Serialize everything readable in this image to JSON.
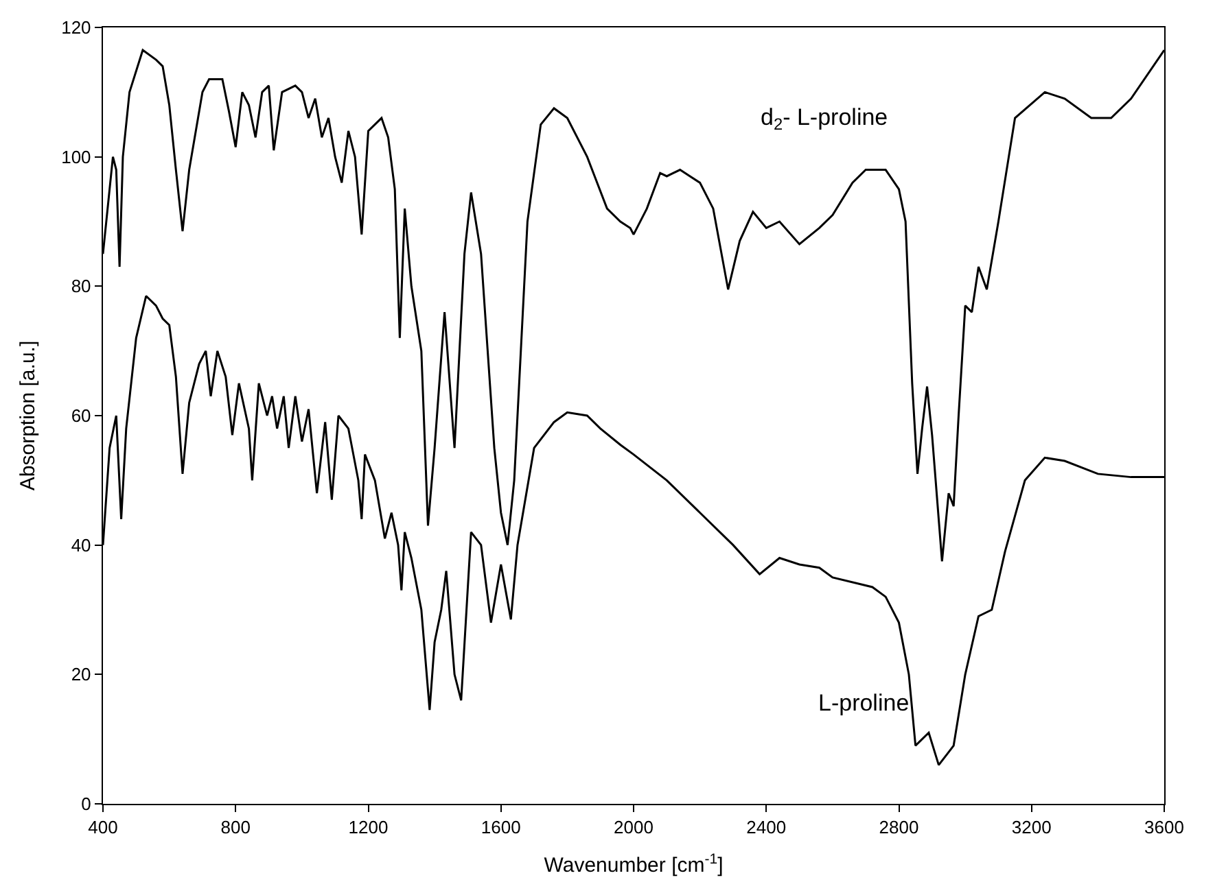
{
  "chart_data": {
    "type": "line",
    "xlabel": "Wavenumber [cm$^{-1}$]",
    "ylabel": "Absorption [a.u.]",
    "xlim": [
      400,
      3600
    ],
    "xticks": [
      400,
      800,
      1200,
      1600,
      2000,
      2400,
      2800,
      3200,
      3600
    ],
    "ylim": [
      0,
      120
    ],
    "yticks": [
      0,
      20,
      40,
      60,
      80,
      100,
      120
    ],
    "legend": false,
    "marker": "none",
    "line_style": "solid",
    "series": [
      {
        "name": "d$_{2}$- L-proline",
        "color": "#000000",
        "x": [
          400,
          420,
          430,
          440,
          450,
          460,
          480,
          520,
          560,
          580,
          600,
          620,
          640,
          660,
          700,
          720,
          760,
          780,
          800,
          820,
          840,
          860,
          880,
          900,
          915,
          940,
          980,
          1000,
          1020,
          1040,
          1060,
          1080,
          1100,
          1120,
          1140,
          1160,
          1180,
          1200,
          1240,
          1260,
          1280,
          1295,
          1310,
          1330,
          1360,
          1380,
          1400,
          1430,
          1460,
          1490,
          1510,
          1540,
          1580,
          1600,
          1620,
          1640,
          1680,
          1720,
          1760,
          1800,
          1860,
          1920,
          1960,
          1990,
          2000,
          2040,
          2080,
          2100,
          2140,
          2200,
          2240,
          2285,
          2320,
          2360,
          2400,
          2440,
          2500,
          2560,
          2600,
          2660,
          2700,
          2760,
          2800,
          2820,
          2840,
          2856,
          2870,
          2885,
          2900,
          2930,
          2950,
          2965,
          2980,
          3000,
          3020,
          3040,
          3065,
          3100,
          3150,
          3240,
          3300,
          3380,
          3440,
          3500,
          3600
        ],
        "values": [
          85,
          95,
          100,
          98,
          83,
          100,
          110,
          116.5,
          115,
          114,
          108,
          98,
          88.5,
          98,
          110,
          112,
          112,
          107,
          101.5,
          110,
          108,
          103,
          110,
          111,
          101,
          110,
          111,
          110,
          106,
          109,
          103,
          106,
          100,
          96,
          104,
          100,
          88,
          104,
          106,
          103,
          95,
          72,
          92,
          80,
          70,
          43,
          55,
          76,
          55,
          85,
          94.5,
          85,
          55,
          45,
          40,
          50,
          90,
          105,
          107.5,
          106,
          100,
          92,
          90,
          89,
          88,
          92,
          97.5,
          97,
          98,
          96,
          92,
          79.5,
          87,
          91.5,
          89,
          90,
          86.5,
          89,
          91,
          96,
          98,
          98,
          95,
          90,
          65,
          51,
          58,
          64.5,
          57,
          37.5,
          48,
          46,
          60,
          77,
          76,
          83,
          79.5,
          90,
          106,
          110,
          109,
          106,
          106,
          109,
          116.5
        ]
      },
      {
        "name": "L-proline",
        "color": "#000000",
        "x": [
          400,
          420,
          440,
          455,
          470,
          500,
          530,
          560,
          580,
          600,
          620,
          640,
          660,
          690,
          710,
          725,
          745,
          770,
          790,
          810,
          840,
          850,
          870,
          895,
          910,
          925,
          945,
          960,
          980,
          1000,
          1020,
          1045,
          1070,
          1090,
          1110,
          1140,
          1170,
          1180,
          1190,
          1220,
          1250,
          1270,
          1290,
          1300,
          1310,
          1330,
          1360,
          1385,
          1400,
          1420,
          1435,
          1460,
          1480,
          1510,
          1540,
          1570,
          1600,
          1630,
          1650,
          1700,
          1760,
          1800,
          1860,
          1900,
          1960,
          2000,
          2100,
          2200,
          2300,
          2380,
          2440,
          2500,
          2560,
          2600,
          2680,
          2720,
          2760,
          2800,
          2830,
          2850,
          2890,
          2920,
          2950,
          2965,
          3000,
          3040,
          3080,
          3120,
          3180,
          3240,
          3300,
          3400,
          3500,
          3600
        ],
        "values": [
          40,
          55,
          60,
          44,
          58,
          72,
          78.5,
          77,
          75,
          74,
          66,
          51,
          62,
          68,
          70,
          63,
          70,
          66,
          57,
          65,
          58,
          50,
          65,
          60,
          63,
          58,
          63,
          55,
          63,
          56,
          61,
          48,
          59,
          47,
          60,
          58,
          50,
          44,
          54,
          50,
          41,
          45,
          40,
          33,
          42,
          38,
          30,
          14.5,
          25,
          30,
          36,
          20,
          16,
          42,
          40,
          28,
          37,
          28.5,
          40,
          55,
          59,
          60.5,
          60,
          58,
          55.5,
          54,
          50,
          45,
          40,
          35.5,
          38,
          37,
          36.5,
          35,
          34,
          33.5,
          32,
          28,
          20,
          9,
          11,
          6,
          8,
          9,
          20,
          29,
          30,
          39,
          50,
          53.5,
          53,
          51,
          50.5,
          50.5
        ]
      }
    ]
  }
}
